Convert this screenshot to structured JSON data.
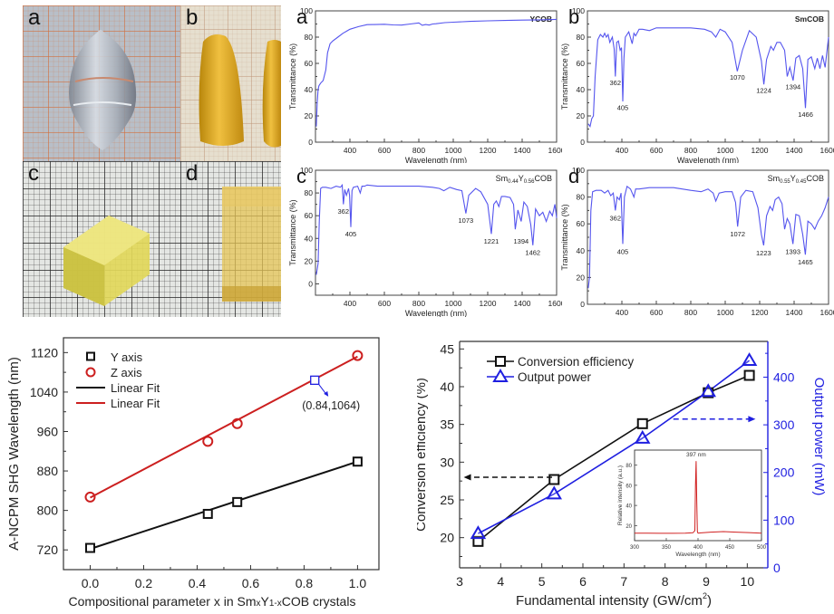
{
  "photos": [
    {
      "label": "a",
      "subject": "colorless YCOB crystal boule on orange graph paper"
    },
    {
      "label": "b",
      "subject": "two yellow SmCOB crystal boules on graph paper"
    },
    {
      "label": "c",
      "subject": "polished yellow crystal block on black grid paper"
    },
    {
      "label": "d",
      "subject": "polished yellow crystal cube on black grid paper"
    }
  ],
  "colors": {
    "spectrum": "#5555ee",
    "black": "#111111",
    "red": "#cc1f1f",
    "blue": "#1f1fe0",
    "inset_red": "#d02020"
  },
  "chart_data": [
    {
      "id": "spectrum-a",
      "type": "line",
      "panel_label": "a",
      "title": "YCOB",
      "xlabel": "Wavelength (nm)",
      "ylabel": "Transmittance (%)",
      "xlim": [
        200,
        1600
      ],
      "ylim": [
        0,
        100
      ],
      "xticks": [
        400,
        600,
        800,
        1000,
        1200,
        1400,
        1600
      ],
      "yticks": [
        0,
        20,
        40,
        60,
        80,
        100
      ],
      "series": [
        {
          "name": "YCOB",
          "x": [
            205,
            210,
            215,
            220,
            230,
            245,
            260,
            270,
            285,
            300,
            330,
            360,
            400,
            450,
            500,
            550,
            600,
            650,
            700,
            750,
            800,
            820,
            840,
            860,
            880,
            900,
            950,
            1000,
            1100,
            1200,
            1300,
            1400,
            1500,
            1600
          ],
          "y": [
            12,
            30,
            40,
            43,
            45,
            47,
            55,
            68,
            75,
            77,
            80,
            83,
            86,
            88,
            89.5,
            89.6,
            89.8,
            89.3,
            89.2,
            90,
            90.8,
            89,
            89.6,
            89.2,
            90,
            90.2,
            91,
            91.4,
            92,
            92.4,
            92.7,
            93,
            93.2,
            93.5
          ]
        }
      ],
      "annotations": []
    },
    {
      "id": "spectrum-b",
      "type": "line",
      "panel_label": "b",
      "title": "SmCOB",
      "xlabel": "Wavelength (nm)",
      "ylabel": "Transmittance (%)",
      "xlim": [
        200,
        1600
      ],
      "ylim": [
        0,
        100
      ],
      "xticks": [
        400,
        600,
        800,
        1000,
        1200,
        1400,
        1600
      ],
      "yticks": [
        0,
        20,
        40,
        60,
        80,
        100
      ],
      "series": [
        {
          "name": "SmCOB",
          "x": [
            205,
            215,
            225,
            235,
            245,
            260,
            275,
            290,
            300,
            310,
            320,
            330,
            345,
            355,
            362,
            370,
            380,
            390,
            398,
            405,
            412,
            420,
            440,
            460,
            470,
            480,
            500,
            520,
            560,
            600,
            700,
            800,
            880,
            920,
            945,
            970,
            1000,
            1040,
            1070,
            1100,
            1140,
            1180,
            1210,
            1224,
            1240,
            1265,
            1280,
            1300,
            1320,
            1345,
            1360,
            1375,
            1394,
            1410,
            1430,
            1450,
            1466,
            1480,
            1500,
            1520,
            1535,
            1550,
            1565,
            1580,
            1600
          ],
          "y": [
            14,
            12,
            18,
            20,
            50,
            78,
            82,
            80,
            83,
            80,
            82,
            76,
            80,
            71,
            50,
            76,
            77,
            70,
            72,
            31,
            64,
            80,
            84,
            75,
            83,
            81,
            86,
            86,
            85,
            87,
            87,
            87,
            86,
            84,
            80,
            86,
            84,
            76,
            54,
            70,
            85,
            80,
            62,
            44,
            63,
            73,
            70,
            76,
            76,
            70,
            50,
            57,
            47,
            64,
            66,
            56,
            26,
            63,
            65,
            56,
            64,
            56,
            66,
            57,
            80
          ]
        }
      ],
      "annotations": [
        {
          "text": "362",
          "x": 362,
          "y": 49
        },
        {
          "text": "405",
          "x": 405,
          "y": 30
        },
        {
          "text": "1070",
          "x": 1070,
          "y": 53
        },
        {
          "text": "1224",
          "x": 1224,
          "y": 43
        },
        {
          "text": "1394",
          "x": 1394,
          "y": 46
        },
        {
          "text": "1466",
          "x": 1466,
          "y": 25
        }
      ]
    },
    {
      "id": "spectrum-c",
      "type": "line",
      "panel_label": "c",
      "title": "Sm0.44Y0.56COB",
      "title_parts": {
        "base": "Sm",
        "sub1": "0.44",
        "mid": "Y",
        "sub2": "0.56",
        "tail": "COB"
      },
      "xlabel": "Wavelength (nm)",
      "ylabel": "Transmittance (%)",
      "xlim": [
        200,
        1600
      ],
      "ylim": [
        -10,
        100
      ],
      "xticks": [
        400,
        600,
        800,
        1000,
        1200,
        1400,
        1600
      ],
      "yticks": [
        0,
        20,
        40,
        60,
        80,
        100
      ],
      "series": [
        {
          "name": "Sm0.44Y0.56COB",
          "x": [
            205,
            215,
            222,
            230,
            240,
            260,
            290,
            320,
            345,
            355,
            362,
            370,
            380,
            392,
            398,
            405,
            412,
            420,
            445,
            460,
            470,
            485,
            500,
            560,
            600,
            700,
            800,
            880,
            920,
            945,
            980,
            1020,
            1050,
            1073,
            1090,
            1130,
            1160,
            1200,
            1215,
            1221,
            1235,
            1250,
            1265,
            1280,
            1300,
            1330,
            1350,
            1360,
            1375,
            1394,
            1410,
            1430,
            1450,
            1462,
            1478,
            1500,
            1520,
            1540,
            1560,
            1575,
            1590,
            1600
          ],
          "y": [
            8,
            18,
            55,
            84,
            85,
            85,
            84,
            86,
            85,
            87,
            70,
            83,
            78,
            84,
            78,
            50,
            82,
            85,
            86,
            80,
            86,
            86,
            87,
            86,
            86,
            86,
            86,
            85,
            84,
            82,
            85,
            83,
            82,
            62,
            78,
            84,
            81,
            70,
            52,
            44,
            70,
            73,
            68,
            77,
            77,
            76,
            70,
            48,
            65,
            55,
            72,
            68,
            52,
            34,
            66,
            60,
            63,
            55,
            64,
            60,
            70,
            58
          ]
        }
      ],
      "annotations": [
        {
          "text": "362",
          "x": 362,
          "y": 68
        },
        {
          "text": "405",
          "x": 405,
          "y": 48
        },
        {
          "text": "1073",
          "x": 1073,
          "y": 60
        },
        {
          "text": "1221",
          "x": 1221,
          "y": 42
        },
        {
          "text": "1394",
          "x": 1394,
          "y": 42
        },
        {
          "text": "1462",
          "x": 1462,
          "y": 32
        }
      ]
    },
    {
      "id": "spectrum-d",
      "type": "line",
      "panel_label": "d",
      "title": "Sm0.55Y0.45COB",
      "title_parts": {
        "base": "Sm",
        "sub1": "0.55",
        "mid": "Y",
        "sub2": "0.45",
        "tail": "COB"
      },
      "xlabel": "Wavelength (nm)",
      "ylabel": "Transmittance (%)",
      "xlim": [
        200,
        1600
      ],
      "ylim": [
        0,
        100
      ],
      "xticks": [
        400,
        600,
        800,
        1000,
        1200,
        1400,
        1600
      ],
      "yticks": [
        0,
        20,
        40,
        60,
        80,
        100
      ],
      "series": [
        {
          "name": "Sm0.55Y0.45COB",
          "x": [
            205,
            212,
            220,
            230,
            250,
            280,
            300,
            320,
            335,
            350,
            362,
            372,
            385,
            395,
            405,
            415,
            430,
            450,
            470,
            480,
            500,
            560,
            600,
            700,
            800,
            860,
            900,
            930,
            945,
            965,
            1000,
            1040,
            1060,
            1072,
            1090,
            1120,
            1160,
            1190,
            1210,
            1223,
            1240,
            1260,
            1275,
            1290,
            1310,
            1330,
            1345,
            1360,
            1375,
            1393,
            1410,
            1430,
            1450,
            1465,
            1480,
            1500,
            1520,
            1540,
            1560,
            1580,
            1600
          ],
          "y": [
            12,
            20,
            70,
            84,
            85,
            85,
            83,
            85,
            81,
            83,
            70,
            80,
            78,
            83,
            45,
            80,
            88,
            86,
            80,
            86,
            86,
            87,
            87,
            87,
            85,
            84,
            86,
            83,
            77,
            83,
            84,
            84,
            76,
            58,
            80,
            85,
            84,
            72,
            52,
            44,
            66,
            73,
            70,
            78,
            80,
            75,
            56,
            64,
            60,
            45,
            67,
            66,
            52,
            37,
            62,
            60,
            56,
            62,
            66,
            72,
            80
          ]
        }
      ],
      "annotations": [
        {
          "text": "362",
          "x": 362,
          "y": 68
        },
        {
          "text": "405",
          "x": 405,
          "y": 43
        },
        {
          "text": "1072",
          "x": 1072,
          "y": 56
        },
        {
          "text": "1223",
          "x": 1223,
          "y": 42
        },
        {
          "text": "1393",
          "x": 1393,
          "y": 43
        },
        {
          "text": "1465",
          "x": 1465,
          "y": 35
        }
      ]
    },
    {
      "id": "shg-wavelength",
      "type": "scatter",
      "xlabel": "Compositional parameter x in SmxY1-xCOB crystals",
      "xlabel_parts": {
        "pre": "Compositional parameter x in Sm",
        "s1": "x",
        "mid": "Y",
        "s2": "1-x",
        "post": "COB crystals"
      },
      "ylabel": "A-NCPM SHG Wavelength (nm)",
      "xlim": [
        -0.1,
        1.08
      ],
      "ylim": [
        680,
        1150
      ],
      "xticks": [
        0.0,
        0.2,
        0.4,
        0.6,
        0.8,
        1.0
      ],
      "xtick_labels": [
        "0.0",
        "0.2",
        "0.4",
        "0.6",
        "0.8",
        "1.0"
      ],
      "yticks": [
        720,
        800,
        880,
        960,
        1040,
        1120
      ],
      "series": [
        {
          "name": "Y axis",
          "marker": "square",
          "color": "#111111",
          "x": [
            0.0,
            0.44,
            0.55,
            1.0
          ],
          "y": [
            724,
            793,
            817,
            899
          ]
        },
        {
          "name": "Z axis",
          "marker": "circle",
          "color": "#cc1f1f",
          "x": [
            0.0,
            0.44,
            0.55,
            1.0
          ],
          "y": [
            827,
            940,
            976,
            1114
          ]
        },
        {
          "name": "Linear Fit",
          "type": "line",
          "color": "#111111",
          "x": [
            0.0,
            1.0
          ],
          "y": [
            722,
            899
          ]
        },
        {
          "name": "Linear Fit",
          "type": "line",
          "color": "#cc1f1f",
          "x": [
            0.0,
            1.0
          ],
          "y": [
            826,
            1112
          ]
        }
      ],
      "legend": [
        {
          "label": "Y axis",
          "symbol": "square",
          "color": "#111111"
        },
        {
          "label": "Z axis",
          "symbol": "circle",
          "color": "#cc1f1f"
        },
        {
          "label": "Linear Fit",
          "symbol": "line",
          "color": "#111111"
        },
        {
          "label": "Linear Fit",
          "symbol": "line",
          "color": "#cc1f1f"
        }
      ],
      "legend_position": "top-left",
      "highlight": {
        "x": 0.84,
        "y": 1064,
        "label": "(0.84,1064)",
        "color": "#1f1fe0"
      }
    },
    {
      "id": "efficiency-power",
      "type": "line",
      "xlabel": "Fundamental intensity (GW/cm2)",
      "xlabel_parts": {
        "pre": "Fundamental intensity (GW/cm",
        "sup": "2",
        "post": ")"
      },
      "ylabel": "Conversion efficiency (%)",
      "ylabel_right": "Output power (mW)",
      "xlim": [
        3,
        10.5
      ],
      "ylim": [
        16,
        46
      ],
      "ylim_right": [
        0,
        475
      ],
      "xticks": [
        3,
        4,
        5,
        6,
        7,
        8,
        9,
        10
      ],
      "yticks": [
        20,
        25,
        30,
        35,
        40,
        45
      ],
      "yticks_right": [
        0,
        100,
        200,
        300,
        400
      ],
      "series": [
        {
          "name": "Conversion efficiency",
          "axis": "left",
          "marker": "square",
          "color": "#111111",
          "x": [
            3.45,
            5.3,
            7.45,
            9.05,
            10.05
          ],
          "y": [
            19.5,
            27.7,
            35.1,
            39.2,
            41.5
          ]
        },
        {
          "name": "Output power",
          "axis": "right",
          "marker": "triangle",
          "color": "#1f1fe0",
          "x": [
            3.45,
            5.3,
            7.45,
            9.05,
            10.05
          ],
          "y": [
            72,
            155,
            272,
            370,
            435
          ]
        }
      ],
      "legend": [
        {
          "label": "Conversion efficiency",
          "symbol": "square-line",
          "color": "#111111"
        },
        {
          "label": "Output power",
          "symbol": "triangle-line",
          "color": "#1f1fe0"
        }
      ],
      "legend_position": "top-left",
      "arrows": [
        {
          "from_x": 5.25,
          "to_x": 3.1,
          "y_left": 28,
          "direction": "left",
          "color": "#111111",
          "style": "dashed"
        },
        {
          "from_x": 8.2,
          "to_x": 10.2,
          "y_right": 312,
          "direction": "right",
          "color": "#1f1fe0",
          "style": "dashed"
        }
      ],
      "inset": {
        "type": "line",
        "xlabel": "Wavelength (nm)",
        "ylabel": "Relative intensity (a.u.)",
        "xlim": [
          300,
          500
        ],
        "ylim": [
          5,
          95
        ],
        "xticks": [
          300,
          350,
          400,
          450,
          500
        ],
        "yticks": [
          20,
          40,
          60,
          80
        ],
        "annotation": "397 nm",
        "color": "#d02020",
        "x": [
          300,
          320,
          340,
          360,
          380,
          392,
          395,
          396,
          397,
          398,
          399,
          400,
          405,
          420,
          440,
          460,
          480,
          500
        ],
        "y": [
          12.5,
          12.5,
          12.3,
          12.3,
          12.5,
          12.8,
          15,
          60,
          84,
          45,
          14,
          12.5,
          12.7,
          13.5,
          14,
          13.5,
          13,
          12.5
        ]
      }
    }
  ]
}
